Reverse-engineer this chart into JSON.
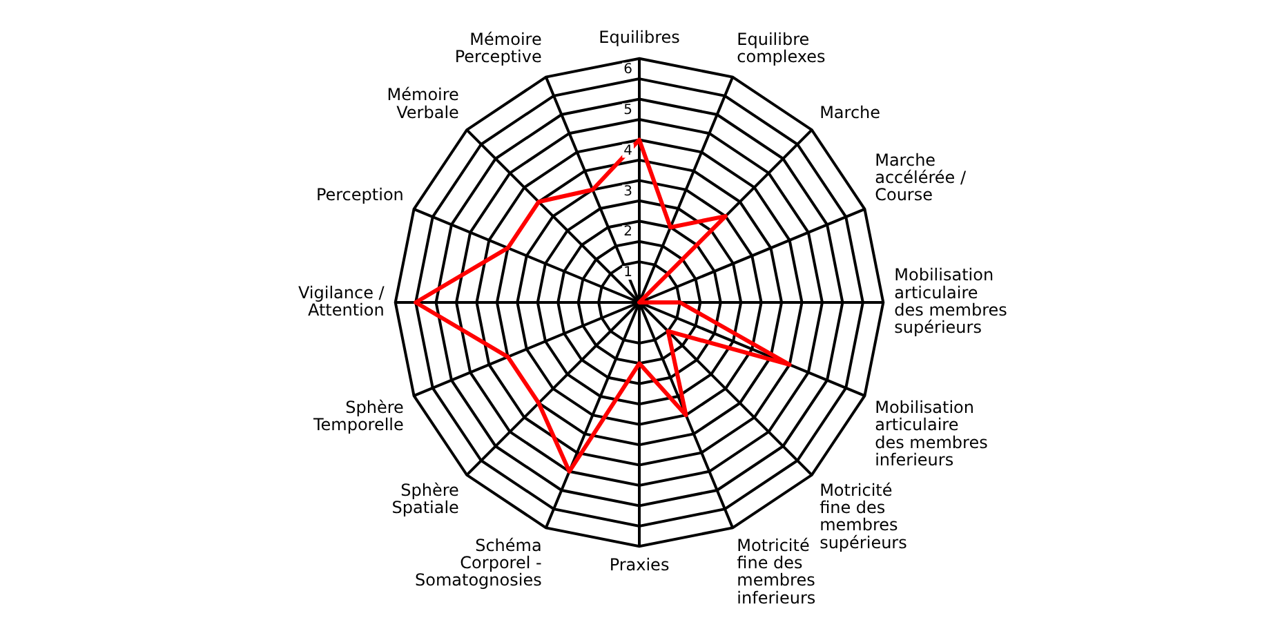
{
  "chart_data": {
    "type": "radar",
    "categories": [
      "Equilibres",
      "Equilibre complexes",
      "Marche",
      "Marche accélérée / Course",
      "Mobilisation articulaire des membres supérieurs",
      "Mobilisation articulaire des membres inferieurs",
      "Motricité fine des membres supérieurs",
      "Motricité fine des membres inferieurs",
      "Praxies",
      "Schéma Corporel - Somatognosies",
      "Sphère Spatiale",
      "Sphère Temporelle",
      "Vigilance / Attention",
      "Perception",
      "Mémoire Verbale",
      "Mémoire Perceptive"
    ],
    "series": [
      {
        "color": "#ff0000",
        "values": [
          4,
          2,
          3,
          0,
          1,
          4,
          1,
          3,
          1.5,
          4.5,
          3.5,
          3.5,
          5.5,
          3.5,
          3.5,
          3
        ]
      }
    ],
    "ylim": [
      0,
      6
    ],
    "yticks": [
      1,
      2,
      3,
      4,
      5,
      6
    ],
    "grid": true,
    "legend": false,
    "marker": "none",
    "line_style": "solid"
  }
}
